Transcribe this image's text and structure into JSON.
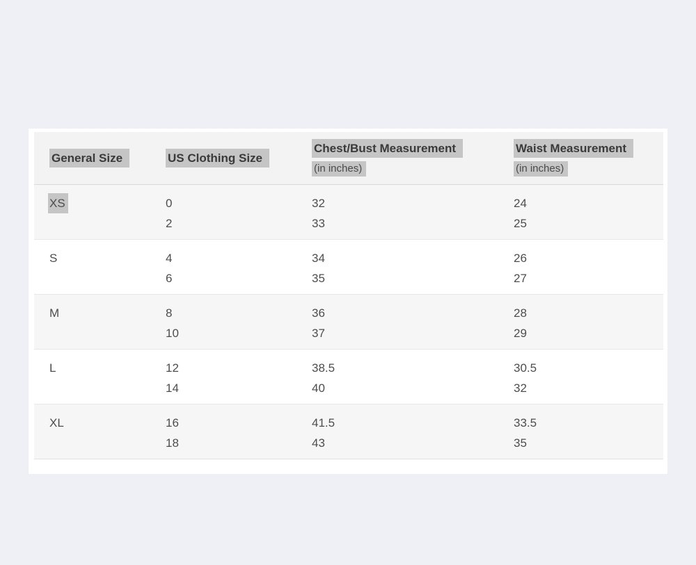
{
  "page": {
    "background_color": "#eff0f5",
    "card_color": "#ffffff"
  },
  "size_chart": {
    "columns": [
      {
        "label": "General Size"
      },
      {
        "label": "US Clothing Size"
      },
      {
        "label": "Chest/Bust Measurement",
        "sublabel": "(in inches)"
      },
      {
        "label": "Waist Measurement",
        "sublabel": "(in inches)"
      }
    ],
    "rows": [
      {
        "general_size": "XS",
        "us_clothing_size": [
          "0",
          "2"
        ],
        "chest_bust": [
          "32",
          "33"
        ],
        "waist": [
          "24",
          "25"
        ]
      },
      {
        "general_size": "S",
        "us_clothing_size": [
          "4",
          "6"
        ],
        "chest_bust": [
          "34",
          "35"
        ],
        "waist": [
          "26",
          "27"
        ]
      },
      {
        "general_size": "M",
        "us_clothing_size": [
          "8",
          "10"
        ],
        "chest_bust": [
          "36",
          "37"
        ],
        "waist": [
          "28",
          "29"
        ]
      },
      {
        "general_size": "L",
        "us_clothing_size": [
          "12",
          "14"
        ],
        "chest_bust": [
          "38.5",
          "40"
        ],
        "waist": [
          "30.5",
          "32"
        ]
      },
      {
        "general_size": "XL",
        "us_clothing_size": [
          "16",
          "18"
        ],
        "chest_bust": [
          "41.5",
          "43"
        ],
        "waist": [
          "33.5",
          "35"
        ]
      }
    ],
    "colors": {
      "header_row_bg": "#f3f3f3",
      "stripe_row_bg": "#f6f6f7",
      "selection_highlight_bg": "#c5c5c5",
      "divider": "#e7e7e7",
      "header_text": "#3a3a3a",
      "data_text": "#4d4d4d"
    }
  }
}
